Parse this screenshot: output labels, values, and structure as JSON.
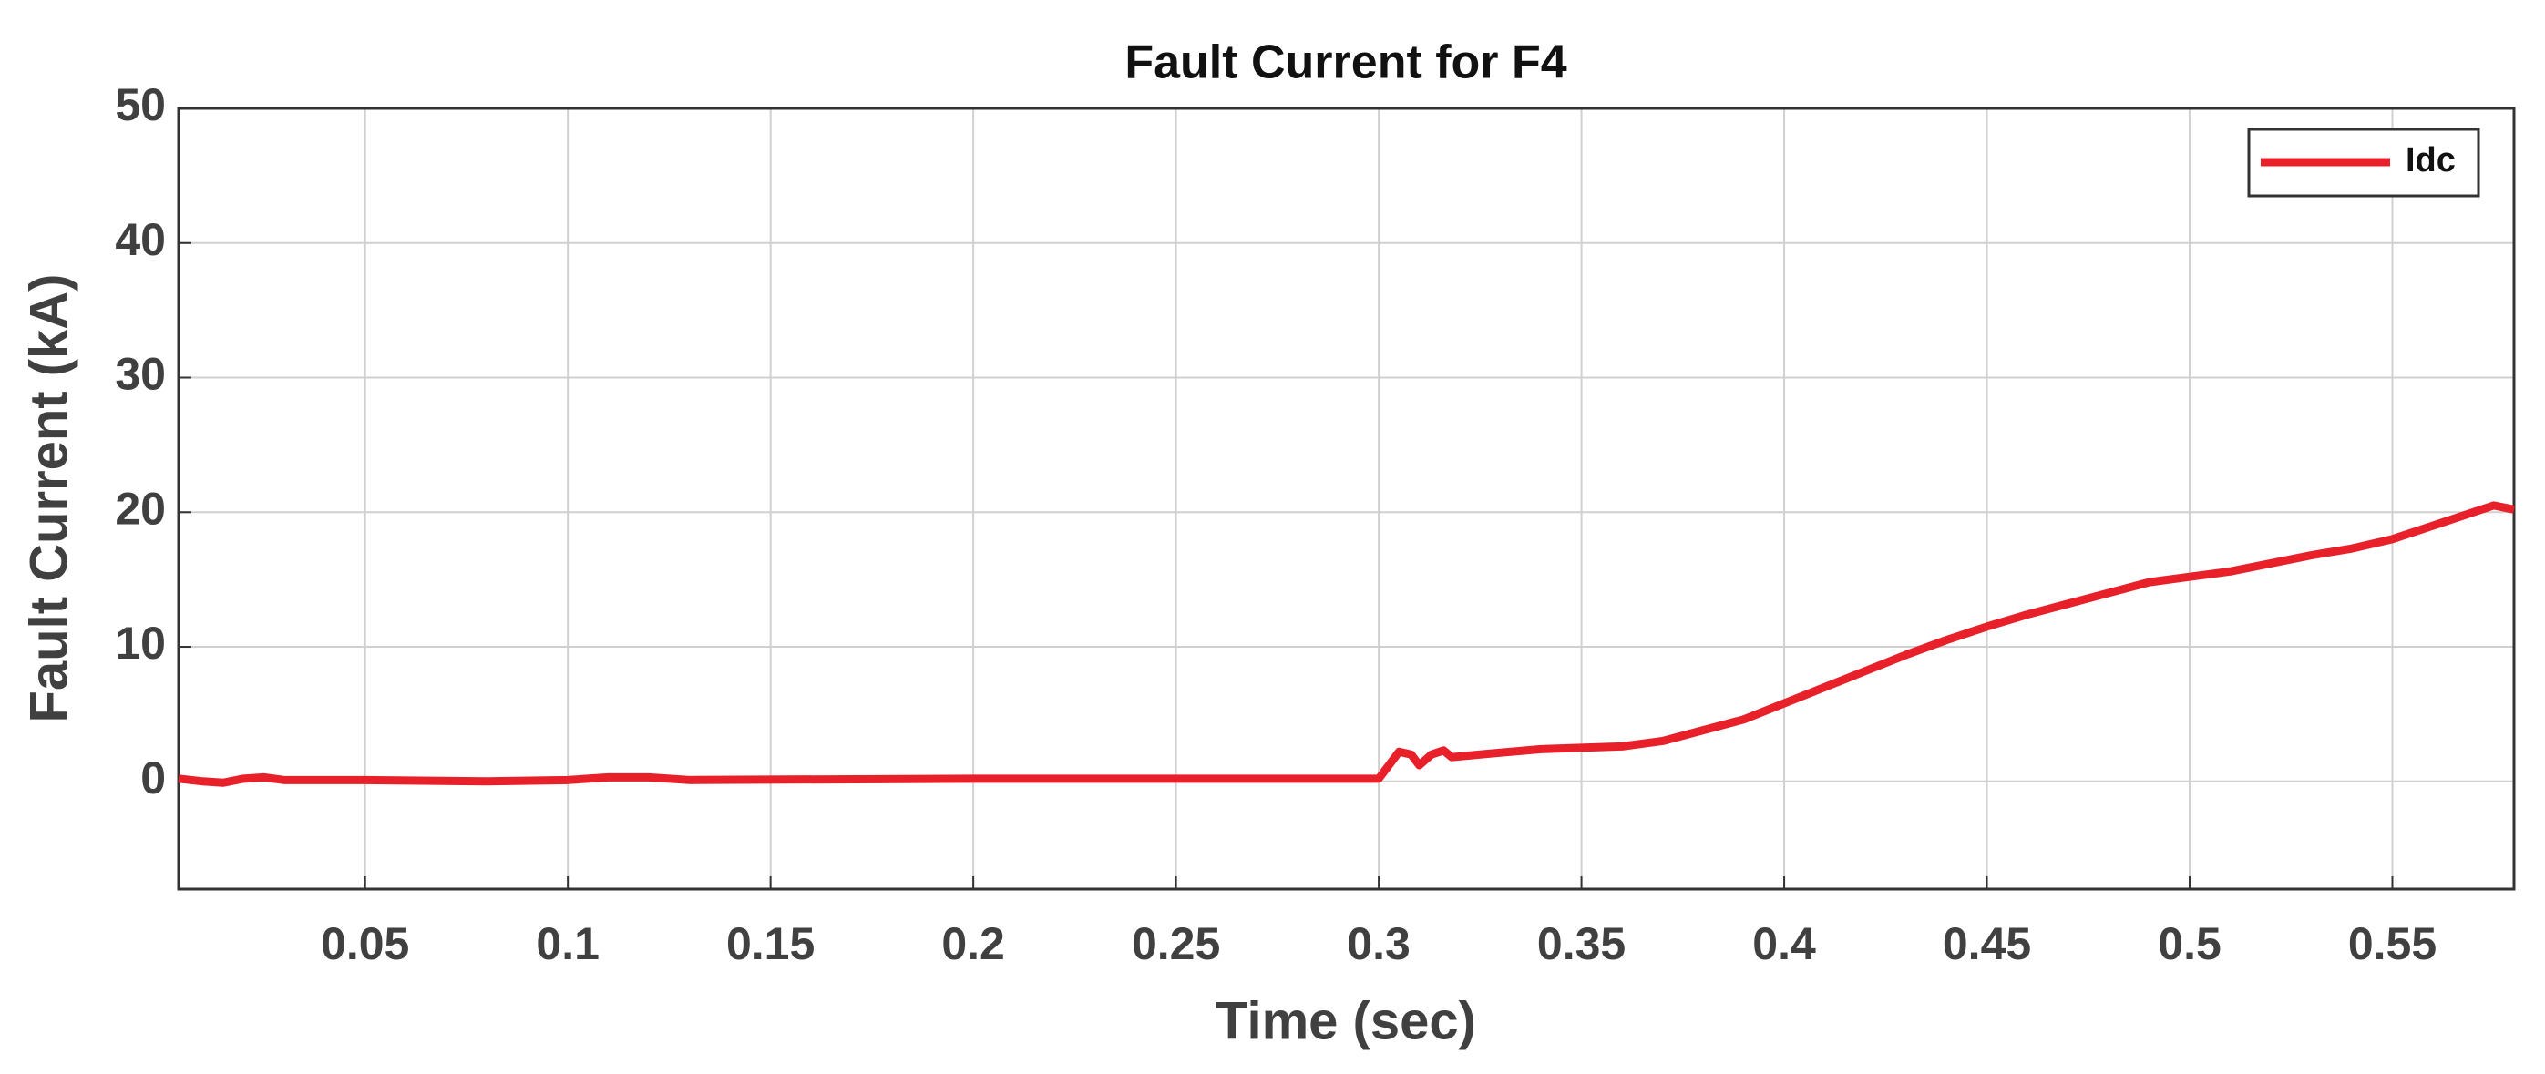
{
  "chart_data": {
    "type": "line",
    "title": "Fault Current for F4",
    "x_label": "Time (sec)",
    "y_label": "Fault Current (kA)",
    "x": [
      0.004,
      0.01,
      0.015,
      0.02,
      0.025,
      0.03,
      0.05,
      0.08,
      0.1,
      0.11,
      0.12,
      0.13,
      0.2,
      0.3,
      0.302,
      0.305,
      0.308,
      0.31,
      0.313,
      0.316,
      0.318,
      0.325,
      0.34,
      0.36,
      0.37,
      0.38,
      0.39,
      0.4,
      0.41,
      0.42,
      0.43,
      0.44,
      0.45,
      0.46,
      0.47,
      0.48,
      0.49,
      0.5,
      0.51,
      0.52,
      0.53,
      0.54,
      0.55,
      0.56,
      0.57,
      0.575,
      0.58
    ],
    "series": [
      {
        "name": "Idc",
        "color": "#e8202a",
        "values": [
          0.2,
          0,
          -0.1,
          0.2,
          0.3,
          0.1,
          0.1,
          0,
          0.1,
          0.3,
          0.3,
          0.1,
          0.2,
          0.2,
          1.0,
          2.2,
          2.0,
          1.2,
          2.0,
          2.3,
          1.8,
          2.0,
          2.4,
          2.6,
          3.0,
          3.8,
          4.6,
          5.8,
          7.0,
          8.2,
          9.4,
          10.5,
          11.5,
          12.4,
          13.2,
          14.0,
          14.8,
          15.2,
          15.6,
          16.2,
          16.8,
          17.3,
          18.0,
          19.0,
          20.0,
          20.5,
          20.2
        ]
      }
    ],
    "xlim": [
      0.004,
      0.58
    ],
    "ylim": [
      -8,
      50
    ],
    "xticks": [
      0.05,
      0.1,
      0.15,
      0.2,
      0.25,
      0.3,
      0.35,
      0.4,
      0.45,
      0.5,
      0.55
    ],
    "yticks": [
      0,
      10,
      20,
      30,
      40,
      50
    ],
    "grid": true,
    "legend": "upper right"
  }
}
